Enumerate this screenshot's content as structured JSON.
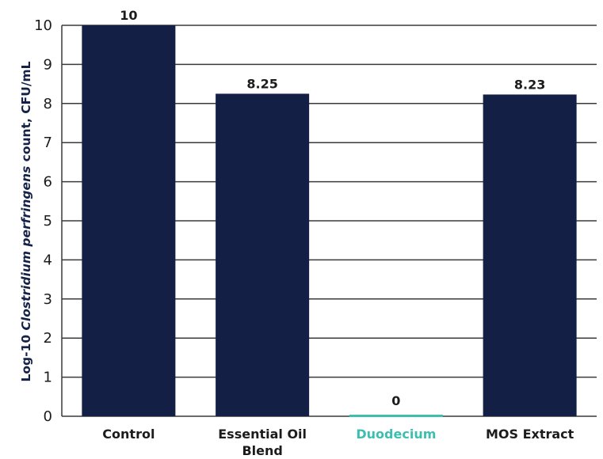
{
  "colors": {
    "bar": "#131f45",
    "highlight": "#3cbfae",
    "grid": "#3a3a3a",
    "text": "#1c1c1c",
    "axis_title": "#142247"
  },
  "chart_data": {
    "type": "bar",
    "categories": [
      "Control",
      "Essential Oil Blend",
      "Duodecium",
      "MOS Extract"
    ],
    "category_label_lines": [
      [
        "Control"
      ],
      [
        "Essential Oil",
        "Blend"
      ],
      [
        "Duodecium"
      ],
      [
        "MOS Extract"
      ]
    ],
    "values": [
      10,
      8.25,
      0,
      8.23
    ],
    "value_labels": [
      "10",
      "8.25",
      "0",
      "8.23"
    ],
    "highlight_index": 2,
    "title": "",
    "xlabel": "",
    "ylabel": {
      "prefix": "Log-10 ",
      "italic": "Clostridium perfringens",
      "suffix": " count, CFU/mL"
    },
    "ylim": [
      0,
      10
    ],
    "yticks": [
      "0",
      "1",
      "2",
      "3",
      "4",
      "5",
      "6",
      "7",
      "8",
      "9",
      "10"
    ],
    "grid": true,
    "legend": "none"
  }
}
